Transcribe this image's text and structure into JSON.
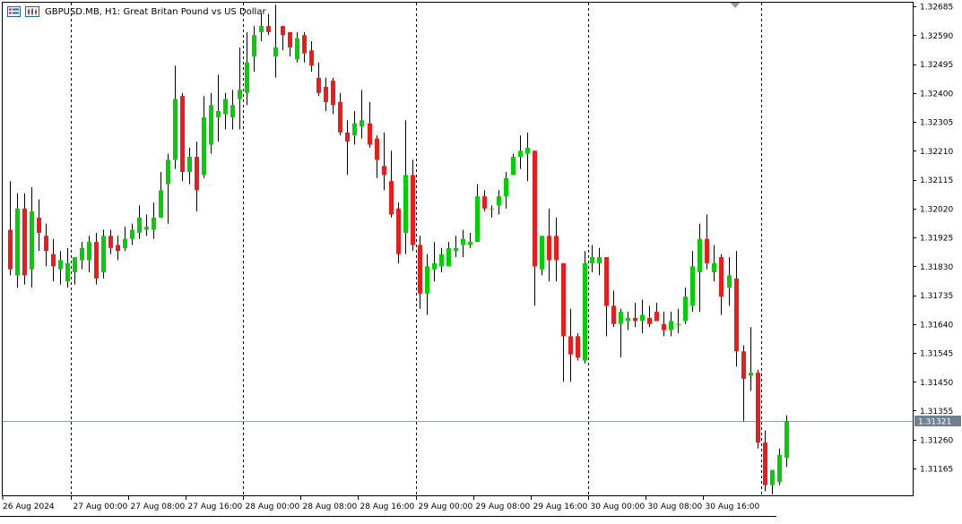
{
  "header": {
    "symbol": "GBPUSD.MB",
    "timeframe": "H1",
    "description": "Great Britan Pound vs US Dollar",
    "title_text": "GBPUSD.MB, H1:  Great Britan Pound vs US Dollar"
  },
  "icons": [
    "window-list-icon",
    "chart-tab-icon",
    "shift-marker-icon"
  ],
  "colors": {
    "background": "#ffffff",
    "bull": "#00d000",
    "bear": "#ee1b1b",
    "wick": "#000000",
    "grid": "#000000",
    "price_line": "#8fa2b2",
    "price_tag_bg": "#6f8091",
    "price_tag_text": "#ffffff"
  },
  "chart_data": {
    "type": "candlestick",
    "symbol": "GBPUSD.MB",
    "timeframe": "H1",
    "title": "GBPUSD.MB, H1:  Great Britan Pound vs US Dollar",
    "y_ticks": [
      "1.32685",
      "1.32590",
      "1.32495",
      "1.32400",
      "1.32305",
      "1.32210",
      "1.32115",
      "1.32020",
      "1.31925",
      "1.31830",
      "1.31735",
      "1.31640",
      "1.31545",
      "1.31450",
      "1.31355",
      "1.31260",
      "1.31165"
    ],
    "ylim": [
      1.3107,
      1.3269
    ],
    "x_labels": [
      "26 Aug 2024",
      "27 Aug 00:00",
      "27 Aug 08:00",
      "27 Aug 16:00",
      "28 Aug 00:00",
      "28 Aug 08:00",
      "28 Aug 16:00",
      "29 Aug 00:00",
      "29 Aug 08:00",
      "29 Aug 16:00",
      "30 Aug 00:00",
      "30 Aug 08:00",
      "30 Aug 16:00"
    ],
    "x_label_bar_index": [
      0,
      9,
      17,
      25,
      33,
      41,
      49,
      57,
      65,
      73,
      81,
      89,
      97
    ],
    "day_separator_bar_index": [
      9,
      33,
      57,
      81,
      105
    ],
    "current_price": 1.31321,
    "current_price_label": "1.31321",
    "grid": "vertical dotted day separators",
    "candles": [
      {
        "o": 1.3195,
        "h": 1.3211,
        "l": 1.318,
        "c": 1.3182
      },
      {
        "o": 1.318,
        "h": 1.3207,
        "l": 1.3176,
        "c": 1.3202
      },
      {
        "o": 1.3202,
        "h": 1.3207,
        "l": 1.3177,
        "c": 1.318
      },
      {
        "o": 1.3182,
        "h": 1.3209,
        "l": 1.3176,
        "c": 1.3201
      },
      {
        "o": 1.3199,
        "h": 1.3205,
        "l": 1.3188,
        "c": 1.3194
      },
      {
        "o": 1.3193,
        "h": 1.3197,
        "l": 1.3183,
        "c": 1.3188
      },
      {
        "o": 1.3187,
        "h": 1.3192,
        "l": 1.3178,
        "c": 1.3183
      },
      {
        "o": 1.3182,
        "h": 1.3188,
        "l": 1.3177,
        "c": 1.3185
      },
      {
        "o": 1.3178,
        "h": 1.3189,
        "l": 1.3176,
        "c": 1.3184
      },
      {
        "o": 1.3181,
        "h": 1.3185,
        "l": 1.3177,
        "c": 1.3186
      },
      {
        "o": 1.3185,
        "h": 1.3191,
        "l": 1.3182,
        "c": 1.3189
      },
      {
        "o": 1.3185,
        "h": 1.3193,
        "l": 1.3181,
        "c": 1.3191
      },
      {
        "o": 1.3191,
        "h": 1.3194,
        "l": 1.3177,
        "c": 1.3179
      },
      {
        "o": 1.3181,
        "h": 1.3195,
        "l": 1.3179,
        "c": 1.3193
      },
      {
        "o": 1.3193,
        "h": 1.3195,
        "l": 1.3187,
        "c": 1.3189
      },
      {
        "o": 1.319,
        "h": 1.3193,
        "l": 1.3185,
        "c": 1.3188
      },
      {
        "o": 1.3189,
        "h": 1.3196,
        "l": 1.3188,
        "c": 1.3192
      },
      {
        "o": 1.3192,
        "h": 1.3197,
        "l": 1.319,
        "c": 1.3195
      },
      {
        "o": 1.3194,
        "h": 1.3203,
        "l": 1.3192,
        "c": 1.3199
      },
      {
        "o": 1.3195,
        "h": 1.32,
        "l": 1.3193,
        "c": 1.3196
      },
      {
        "o": 1.3195,
        "h": 1.3204,
        "l": 1.3192,
        "c": 1.3199
      },
      {
        "o": 1.3199,
        "h": 1.3214,
        "l": 1.3199,
        "c": 1.3208
      },
      {
        "o": 1.321,
        "h": 1.322,
        "l": 1.3197,
        "c": 1.3218
      },
      {
        "o": 1.3218,
        "h": 1.3249,
        "l": 1.3215,
        "c": 1.3238
      },
      {
        "o": 1.3239,
        "h": 1.324,
        "l": 1.3211,
        "c": 1.3214
      },
      {
        "o": 1.3214,
        "h": 1.3222,
        "l": 1.321,
        "c": 1.3219
      },
      {
        "o": 1.3219,
        "h": 1.3224,
        "l": 1.3201,
        "c": 1.3208
      },
      {
        "o": 1.3213,
        "h": 1.3239,
        "l": 1.3212,
        "c": 1.3232
      },
      {
        "o": 1.3223,
        "h": 1.324,
        "l": 1.322,
        "c": 1.3236
      },
      {
        "o": 1.3232,
        "h": 1.3246,
        "l": 1.3224,
        "c": 1.3234
      },
      {
        "o": 1.3233,
        "h": 1.324,
        "l": 1.3228,
        "c": 1.3238
      },
      {
        "o": 1.3232,
        "h": 1.3241,
        "l": 1.3228,
        "c": 1.3236
      },
      {
        "o": 1.3238,
        "h": 1.3255,
        "l": 1.3228,
        "c": 1.3241
      },
      {
        "o": 1.324,
        "h": 1.326,
        "l": 1.3236,
        "c": 1.325
      },
      {
        "o": 1.3252,
        "h": 1.3262,
        "l": 1.3247,
        "c": 1.3259
      },
      {
        "o": 1.326,
        "h": 1.3266,
        "l": 1.3257,
        "c": 1.3262
      },
      {
        "o": 1.3262,
        "h": 1.3266,
        "l": 1.3259,
        "c": 1.326
      },
      {
        "o": 1.3252,
        "h": 1.3269,
        "l": 1.3245,
        "c": 1.3255
      },
      {
        "o": 1.3262,
        "h": 1.3262,
        "l": 1.3254,
        "c": 1.3259
      },
      {
        "o": 1.326,
        "h": 1.326,
        "l": 1.3252,
        "c": 1.3255
      },
      {
        "o": 1.3251,
        "h": 1.326,
        "l": 1.325,
        "c": 1.3258
      },
      {
        "o": 1.3259,
        "h": 1.326,
        "l": 1.325,
        "c": 1.3253
      },
      {
        "o": 1.3254,
        "h": 1.3257,
        "l": 1.3247,
        "c": 1.3249
      },
      {
        "o": 1.3245,
        "h": 1.325,
        "l": 1.3239,
        "c": 1.324
      },
      {
        "o": 1.3242,
        "h": 1.3245,
        "l": 1.3234,
        "c": 1.3237
      },
      {
        "o": 1.3244,
        "h": 1.3245,
        "l": 1.3233,
        "c": 1.3236
      },
      {
        "o": 1.3237,
        "h": 1.324,
        "l": 1.3226,
        "c": 1.3227
      },
      {
        "o": 1.3227,
        "h": 1.3231,
        "l": 1.3213,
        "c": 1.3224
      },
      {
        "o": 1.3226,
        "h": 1.3234,
        "l": 1.3223,
        "c": 1.323
      },
      {
        "o": 1.3229,
        "h": 1.3241,
        "l": 1.3225,
        "c": 1.3231
      },
      {
        "o": 1.323,
        "h": 1.3237,
        "l": 1.3222,
        "c": 1.3223
      },
      {
        "o": 1.3225,
        "h": 1.3226,
        "l": 1.3212,
        "c": 1.3218
      },
      {
        "o": 1.3216,
        "h": 1.3227,
        "l": 1.3208,
        "c": 1.3213
      },
      {
        "o": 1.3211,
        "h": 1.3221,
        "l": 1.3199,
        "c": 1.32
      },
      {
        "o": 1.3202,
        "h": 1.3204,
        "l": 1.3184,
        "c": 1.3187
      },
      {
        "o": 1.3194,
        "h": 1.3231,
        "l": 1.3187,
        "c": 1.3213
      },
      {
        "o": 1.3213,
        "h": 1.3218,
        "l": 1.3188,
        "c": 1.319
      },
      {
        "o": 1.319,
        "h": 1.3193,
        "l": 1.3169,
        "c": 1.3174
      },
      {
        "o": 1.3174,
        "h": 1.3187,
        "l": 1.3167,
        "c": 1.3183
      },
      {
        "o": 1.3182,
        "h": 1.3191,
        "l": 1.3178,
        "c": 1.3184
      },
      {
        "o": 1.3183,
        "h": 1.3189,
        "l": 1.3181,
        "c": 1.3187
      },
      {
        "o": 1.3183,
        "h": 1.3191,
        "l": 1.3183,
        "c": 1.3189
      },
      {
        "o": 1.3188,
        "h": 1.3193,
        "l": 1.3186,
        "c": 1.3189
      },
      {
        "o": 1.319,
        "h": 1.3195,
        "l": 1.3186,
        "c": 1.3192
      },
      {
        "o": 1.319,
        "h": 1.3194,
        "l": 1.3189,
        "c": 1.3191
      },
      {
        "o": 1.3191,
        "h": 1.321,
        "l": 1.3191,
        "c": 1.3206
      },
      {
        "o": 1.3206,
        "h": 1.3208,
        "l": 1.3201,
        "c": 1.3202
      },
      {
        "o": 1.3202,
        "h": 1.3203,
        "l": 1.3199,
        "c": 1.3202
      },
      {
        "o": 1.3203,
        "h": 1.3208,
        "l": 1.32,
        "c": 1.3206
      },
      {
        "o": 1.3206,
        "h": 1.3214,
        "l": 1.3202,
        "c": 1.3212
      },
      {
        "o": 1.3213,
        "h": 1.322,
        "l": 1.3213,
        "c": 1.3219
      },
      {
        "o": 1.3219,
        "h": 1.3226,
        "l": 1.3215,
        "c": 1.3221
      },
      {
        "o": 1.322,
        "h": 1.3227,
        "l": 1.3211,
        "c": 1.3222
      },
      {
        "o": 1.3221,
        "h": 1.3221,
        "l": 1.317,
        "c": 1.3183
      },
      {
        "o": 1.3182,
        "h": 1.3193,
        "l": 1.318,
        "c": 1.3193
      },
      {
        "o": 1.3193,
        "h": 1.3202,
        "l": 1.3178,
        "c": 1.3185
      },
      {
        "o": 1.3193,
        "h": 1.3199,
        "l": 1.3178,
        "c": 1.3185
      },
      {
        "o": 1.3184,
        "h": 1.3184,
        "l": 1.3145,
        "c": 1.316
      },
      {
        "o": 1.316,
        "h": 1.3169,
        "l": 1.3145,
        "c": 1.3154
      },
      {
        "o": 1.316,
        "h": 1.3161,
        "l": 1.3152,
        "c": 1.3153
      },
      {
        "o": 1.3152,
        "h": 1.3188,
        "l": 1.3151,
        "c": 1.3184
      },
      {
        "o": 1.3184,
        "h": 1.319,
        "l": 1.3181,
        "c": 1.3186
      },
      {
        "o": 1.3184,
        "h": 1.3189,
        "l": 1.318,
        "c": 1.3186
      },
      {
        "o": 1.3186,
        "h": 1.3186,
        "l": 1.316,
        "c": 1.317
      },
      {
        "o": 1.317,
        "h": 1.3175,
        "l": 1.3163,
        "c": 1.3164
      },
      {
        "o": 1.3164,
        "h": 1.3169,
        "l": 1.3153,
        "c": 1.3168
      },
      {
        "o": 1.3165,
        "h": 1.3168,
        "l": 1.3162,
        "c": 1.3166
      },
      {
        "o": 1.3166,
        "h": 1.3171,
        "l": 1.3163,
        "c": 1.3165
      },
      {
        "o": 1.3165,
        "h": 1.3172,
        "l": 1.3161,
        "c": 1.3167
      },
      {
        "o": 1.3166,
        "h": 1.317,
        "l": 1.3163,
        "c": 1.3164
      },
      {
        "o": 1.3168,
        "h": 1.3171,
        "l": 1.3165,
        "c": 1.3165
      },
      {
        "o": 1.3164,
        "h": 1.3168,
        "l": 1.316,
        "c": 1.3162
      },
      {
        "o": 1.3162,
        "h": 1.3168,
        "l": 1.316,
        "c": 1.3165
      },
      {
        "o": 1.3164,
        "h": 1.3169,
        "l": 1.3161,
        "c": 1.3164
      },
      {
        "o": 1.3165,
        "h": 1.3176,
        "l": 1.3164,
        "c": 1.3173
      },
      {
        "o": 1.317,
        "h": 1.3188,
        "l": 1.3168,
        "c": 1.3183
      },
      {
        "o": 1.3181,
        "h": 1.3197,
        "l": 1.3168,
        "c": 1.3192
      },
      {
        "o": 1.3192,
        "h": 1.32,
        "l": 1.3182,
        "c": 1.3184
      },
      {
        "o": 1.3181,
        "h": 1.319,
        "l": 1.3178,
        "c": 1.3184
      },
      {
        "o": 1.3186,
        "h": 1.3187,
        "l": 1.3167,
        "c": 1.3173
      },
      {
        "o": 1.3176,
        "h": 1.3186,
        "l": 1.317,
        "c": 1.318
      },
      {
        "o": 1.3179,
        "h": 1.3188,
        "l": 1.315,
        "c": 1.3155
      },
      {
        "o": 1.3155,
        "h": 1.3157,
        "l": 1.3132,
        "c": 1.3146
      },
      {
        "o": 1.3147,
        "h": 1.3163,
        "l": 1.3142,
        "c": 1.3148
      },
      {
        "o": 1.3148,
        "h": 1.3149,
        "l": 1.3123,
        "c": 1.3125
      },
      {
        "o": 1.3125,
        "h": 1.3129,
        "l": 1.3109,
        "c": 1.3111
      },
      {
        "o": 1.3111,
        "h": 1.3116,
        "l": 1.3108,
        "c": 1.3116
      },
      {
        "o": 1.3112,
        "h": 1.3123,
        "l": 1.3111,
        "c": 1.3121
      },
      {
        "o": 1.312,
        "h": 1.3134,
        "l": 1.3117,
        "c": 1.3132
      }
    ]
  }
}
